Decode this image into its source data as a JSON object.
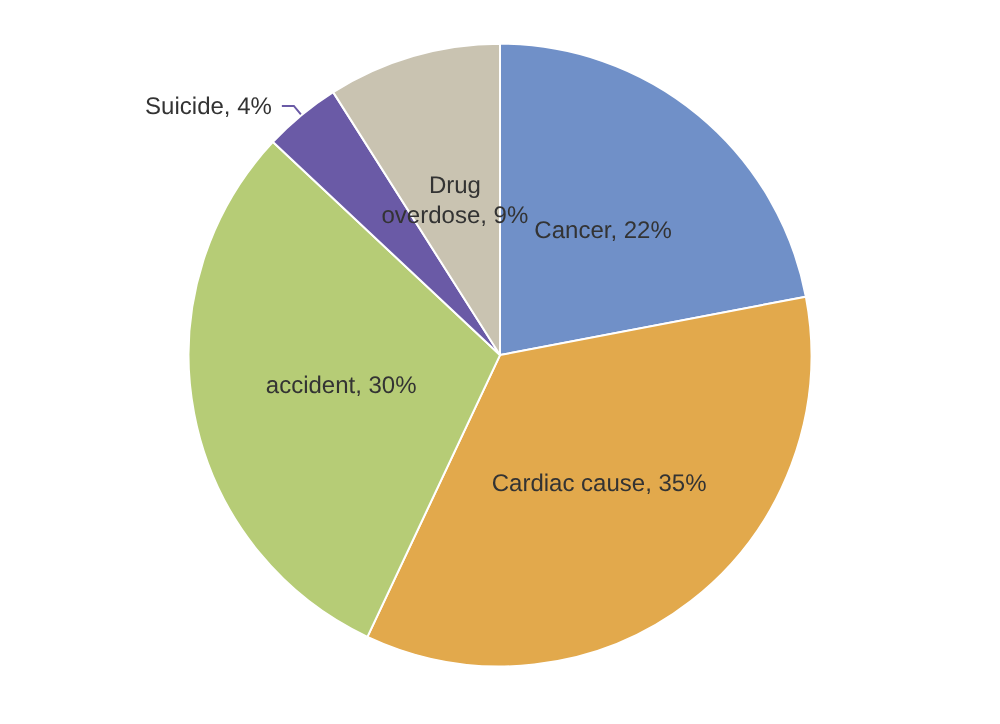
{
  "chart_data": {
    "type": "pie",
    "categories": [
      "Cancer",
      "Cardiac cause",
      "accident",
      "Suicide",
      "Drug overdose"
    ],
    "value_labels": [
      "22%",
      "35%",
      "30%",
      "4%",
      "9%"
    ],
    "values": [
      22,
      35,
      30,
      4,
      9
    ],
    "colors": [
      "#7090c8",
      "#e2a94c",
      "#b6cc76",
      "#6a5aa6",
      "#c9c3b1"
    ],
    "legend": false
  }
}
